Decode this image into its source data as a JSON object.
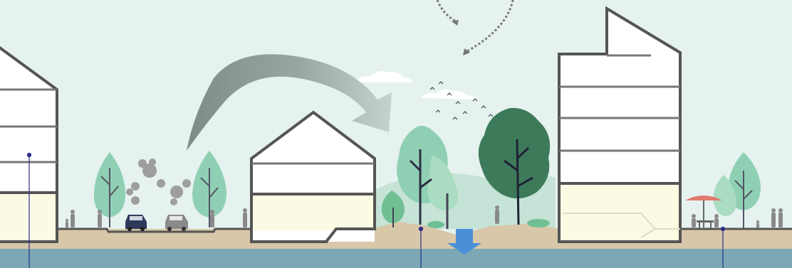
{
  "diagram": {
    "kind": "urban-section",
    "colors": {
      "sky": "#e5f2ef",
      "ground": "#d8c7a8",
      "water": "#7ba8b4",
      "building_outline": "#555555",
      "building_fill": "#ffffff",
      "ground_floor_fill": "#fbfbe3",
      "tree_light": "#8fd0b4",
      "tree_mid": "#6fbf92",
      "tree_dark": "#3d7a5a",
      "arrow_gray": "#8a9694",
      "flow_arrow_blue": "#4a90d9",
      "marker_line": "#2c2c8a",
      "people": "#8a8a8a",
      "umbrella": "#e07a6e"
    },
    "elements": [
      {
        "id": "left-building",
        "type": "building",
        "floors": 4
      },
      {
        "id": "street",
        "type": "road",
        "vehicles": 2
      },
      {
        "id": "middle-house",
        "type": "house",
        "floors": 2
      },
      {
        "id": "park",
        "type": "green-space"
      },
      {
        "id": "right-tower",
        "type": "building",
        "floors": 6
      },
      {
        "id": "cafe-terrace",
        "type": "terrace"
      },
      {
        "id": "heat-arrow",
        "type": "gray-curved-arrow"
      },
      {
        "id": "infiltration-arrow",
        "type": "blue-down-arrow"
      },
      {
        "id": "airflow-arrows",
        "type": "dotted-arrows"
      }
    ]
  }
}
